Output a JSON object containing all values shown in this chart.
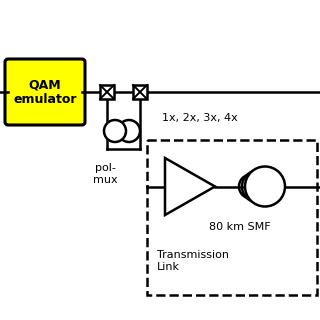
{
  "bg_color": "#ffffff",
  "box_color": "#ffff00",
  "box_text": "QAM\nemulator",
  "pol_mux_label": "pol-\nmux",
  "multiplier_label": "1x, 2x, 3x, 4x",
  "smf_label": "80 km SMF",
  "tx_link_label": "Transmission\nLink",
  "line_color": "#000000"
}
